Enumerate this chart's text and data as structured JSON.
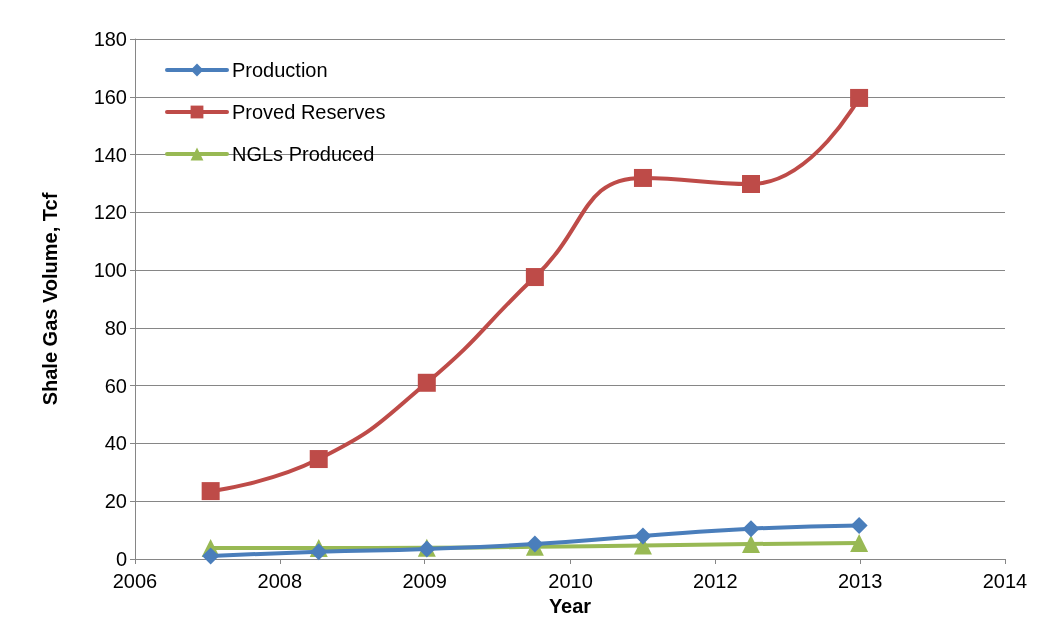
{
  "chart_data": {
    "type": "line",
    "xlabel": "Year",
    "ylabel": "Shale Gas Volume, Tcf",
    "x": [
      2007,
      2008,
      2009,
      2010,
      2011,
      2012,
      2013
    ],
    "series": [
      {
        "name": "Production",
        "color": "#4a7ebb",
        "marker": "diamond",
        "values": [
          1,
          2.5,
          3.5,
          5.2,
          8,
          10.5,
          11.6
        ]
      },
      {
        "name": "Proved Reserves",
        "color": "#be4b48",
        "marker": "square",
        "values": [
          23.5,
          34.6,
          61,
          97.6,
          131.9,
          129.8,
          159.6
        ]
      },
      {
        "name": "NGLs Produced",
        "color": "#98b954",
        "marker": "triangle",
        "values": [
          3.8,
          3.8,
          3.9,
          4.2,
          4.7,
          5.2,
          5.5
        ]
      }
    ],
    "xlim": [
      2006.3,
      2014.35
    ],
    "xticks": [
      {
        "value": 2006.3,
        "label": "2006"
      },
      {
        "value": 2007.64,
        "label": "2008"
      },
      {
        "value": 2008.98,
        "label": "2009"
      },
      {
        "value": 2010.33,
        "label": "2010"
      },
      {
        "value": 2011.67,
        "label": "2012"
      },
      {
        "value": 2013.01,
        "label": "2013"
      },
      {
        "value": 2014.35,
        "label": "2014"
      }
    ],
    "ylim": [
      0,
      180
    ],
    "yticks": [
      0,
      20,
      40,
      60,
      80,
      100,
      120,
      140,
      160,
      180
    ],
    "grid": "y",
    "legend": "top left",
    "line_style": "solid"
  }
}
